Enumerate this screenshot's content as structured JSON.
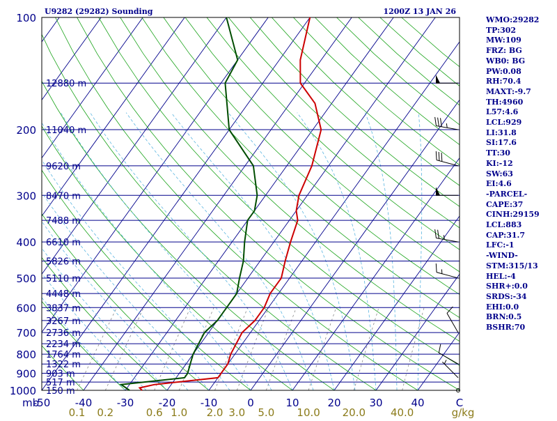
{
  "header": {
    "station": "U9282 (29282) Sounding",
    "time": "1200Z 13 JAN 26"
  },
  "chart_data": {
    "type": "line",
    "pressure_ticks": [
      "100",
      "200",
      "300",
      "400",
      "500",
      "600",
      "700",
      "800",
      "900",
      "1000"
    ],
    "pressure_unit": "mb",
    "temperature_ticks": [
      "-50",
      "-40",
      "-30",
      "-20",
      "-10",
      "0",
      "10",
      "20",
      "30",
      "40",
      "C"
    ],
    "mixing_ratio_ticks": [
      "0.1",
      "0.2",
      "0.6",
      "1.0",
      "2.0",
      "3.0",
      "5.0",
      "10.0",
      "20.0",
      "40.0",
      "g/kg"
    ],
    "height_labels": [
      {
        "p": 150,
        "label": "12880 m"
      },
      {
        "p": 200,
        "label": "11040 m"
      },
      {
        "p": 250,
        "label": "9620 m"
      },
      {
        "p": 300,
        "label": "8470 m"
      },
      {
        "p": 350,
        "label": "7488 m"
      },
      {
        "p": 400,
        "label": "6610 m"
      },
      {
        "p": 450,
        "label": "5826 m"
      },
      {
        "p": 500,
        "label": "5110 m"
      },
      {
        "p": 550,
        "label": "4448 m"
      },
      {
        "p": 600,
        "label": "3837 m"
      },
      {
        "p": 650,
        "label": "3267 m"
      },
      {
        "p": 700,
        "label": "2736 m"
      },
      {
        "p": 750,
        "label": "2234 m"
      },
      {
        "p": 800,
        "label": "1764 m"
      },
      {
        "p": 850,
        "label": "1322 m"
      },
      {
        "p": 900,
        "label": "903 m"
      },
      {
        "p": 950,
        "label": "517 m"
      },
      {
        "p": 1000,
        "label": "150 m"
      }
    ],
    "temperature_profile": [
      [
        1000,
        -26
      ],
      [
        985,
        -27
      ],
      [
        965,
        -24
      ],
      [
        925,
        -10
      ],
      [
        900,
        -10
      ],
      [
        850,
        -10
      ],
      [
        800,
        -11
      ],
      [
        700,
        -12
      ],
      [
        650,
        -11
      ],
      [
        620,
        -11
      ],
      [
        600,
        -11
      ],
      [
        550,
        -12
      ],
      [
        500,
        -12
      ],
      [
        450,
        -14
      ],
      [
        400,
        -16
      ],
      [
        350,
        -18
      ],
      [
        330,
        -20
      ],
      [
        300,
        -22
      ],
      [
        250,
        -24
      ],
      [
        200,
        -28
      ],
      [
        170,
        -34
      ],
      [
        150,
        -41
      ],
      [
        130,
        -45
      ],
      [
        100,
        -50
      ]
    ],
    "dewpoint_profile": [
      [
        1000,
        -29
      ],
      [
        965,
        -32
      ],
      [
        925,
        -18
      ],
      [
        900,
        -18
      ],
      [
        850,
        -19
      ],
      [
        800,
        -20
      ],
      [
        700,
        -21
      ],
      [
        650,
        -20
      ],
      [
        620,
        -20
      ],
      [
        600,
        -20
      ],
      [
        550,
        -20
      ],
      [
        500,
        -22
      ],
      [
        450,
        -24
      ],
      [
        400,
        -27
      ],
      [
        350,
        -30
      ],
      [
        330,
        -30
      ],
      [
        300,
        -32
      ],
      [
        250,
        -38
      ],
      [
        200,
        -50
      ],
      [
        150,
        -59
      ],
      [
        130,
        -60
      ],
      [
        100,
        -70
      ]
    ],
    "wind_barbs": [
      {
        "p": 150,
        "dir": 270,
        "spd": 50
      },
      {
        "p": 200,
        "dir": 280,
        "spd": 35
      },
      {
        "p": 250,
        "dir": 285,
        "spd": 30
      },
      {
        "p": 300,
        "dir": 270,
        "spd": 50
      },
      {
        "p": 400,
        "dir": 280,
        "spd": 25
      },
      {
        "p": 500,
        "dir": 285,
        "spd": 15
      },
      {
        "p": 700,
        "dir": 330,
        "spd": 10
      },
      {
        "p": 850,
        "dir": 300,
        "spd": 10
      },
      {
        "p": 925,
        "dir": 315,
        "spd": 5
      },
      {
        "p": 1000,
        "dir": 0,
        "spd": 0
      }
    ],
    "colors": {
      "frame": "#000000",
      "isobar": "#00008b",
      "isotherm": "#00008b",
      "dry_adiabat": "#1aa31a",
      "moist_adiabat": "#5ab5e0",
      "mixing_ratio": "#888888",
      "temperature": "#cc0000",
      "dewpoint": "#004d00",
      "barb": "#000000",
      "label": "#00008b",
      "mr_label": "#8b7b1a"
    }
  },
  "indices": [
    "WMO:29282",
    "TP:302",
    "MW:109",
    "FRZ: BG",
    "WB0: BG",
    "PW:0.08",
    "RH:70.4",
    "MAXT:-9.7",
    "TH:4960",
    "L57:4.6",
    "LCL:929",
    "LI:31.8",
    "SI:17.6",
    "TT:30",
    "KI:-12",
    "SW:63",
    "EI:4.6",
    "-PARCEL-",
    "CAPE:37",
    "CINH:29159",
    "LCL:883",
    "CAP:31.7",
    "LFC:-1",
    "-WIND-",
    "STM:315/13",
    "HEL:-4",
    "SHR+:0.0",
    "SRDS:-34",
    "EHI:0.0",
    "BRN:0.5",
    "BSHR:70"
  ]
}
